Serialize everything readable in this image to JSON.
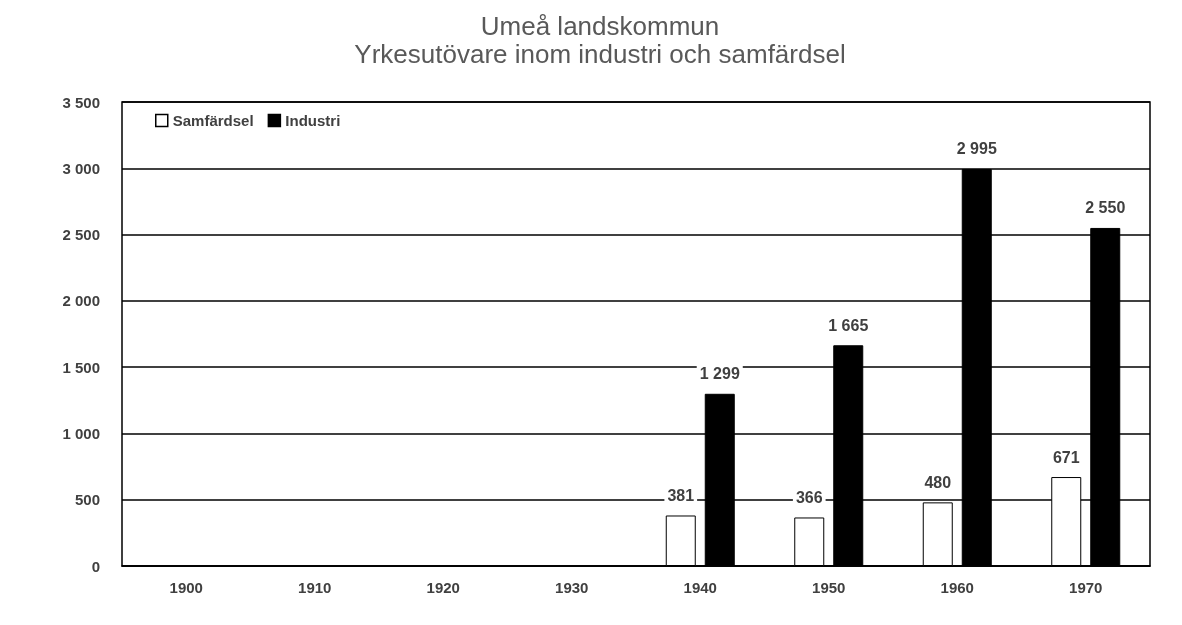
{
  "chart_data": {
    "type": "bar",
    "title": "Umeå landskommun",
    "subtitle": "Yrkesutövare inom industri och samfärdsel",
    "categories": [
      "1900",
      "1910",
      "1920",
      "1930",
      "1940",
      "1950",
      "1960",
      "1970"
    ],
    "series": [
      {
        "name": "Samfärdsel",
        "color": "#ffffff",
        "values": [
          null,
          null,
          null,
          null,
          381,
          366,
          480,
          671
        ],
        "value_labels": [
          null,
          null,
          null,
          null,
          "381",
          "366",
          "480",
          "671"
        ]
      },
      {
        "name": "Industri",
        "color": "#000000",
        "values": [
          null,
          null,
          null,
          null,
          1299,
          1665,
          2995,
          2550
        ],
        "value_labels": [
          null,
          null,
          null,
          null,
          "1 299",
          "1 665",
          "2 995",
          "2 550"
        ]
      }
    ],
    "ylim": [
      0,
      3500
    ],
    "yticks": [
      0,
      500,
      {
        "value": 1000,
        "label": "1 000"
      },
      {
        "value": 1500,
        "label": "1 500"
      },
      {
        "value": 2000,
        "label": "2 000"
      },
      {
        "value": 2500,
        "label": "2 500"
      },
      {
        "value": 3000,
        "label": "3 000"
      },
      {
        "value": 3500,
        "label": "3 500"
      }
    ],
    "grid": "y",
    "legend": "top left"
  }
}
